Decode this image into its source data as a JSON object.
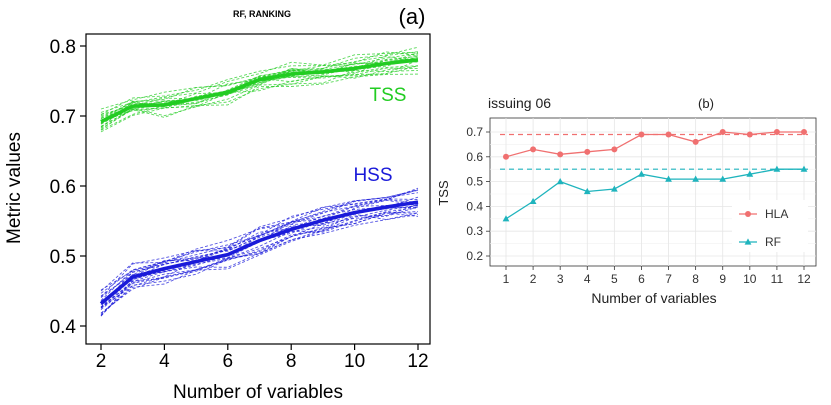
{
  "chart_data": [
    {
      "type": "line",
      "title": "RF, RANKING",
      "panel_label": "(a)",
      "xlabel": "Number of variables",
      "ylabel": "Metric values",
      "xlim": [
        2,
        12
      ],
      "ylim": [
        0.4,
        0.8
      ],
      "x_ticks": [
        "2",
        "4",
        "6",
        "8",
        "10",
        "12"
      ],
      "y_ticks": [
        "0.4",
        "0.5",
        "0.6",
        "0.7",
        "0.8"
      ],
      "grid": false,
      "x": [
        2,
        3,
        4,
        5,
        6,
        7,
        8,
        9,
        10,
        11,
        12
      ],
      "series": [
        {
          "name": "TSS",
          "color": "#22cc22",
          "values": [
            0.692,
            0.714,
            0.716,
            0.725,
            0.734,
            0.752,
            0.76,
            0.763,
            0.768,
            0.775,
            0.78
          ]
        },
        {
          "name": "HSS",
          "color": "#1a1ad9",
          "values": [
            0.432,
            0.47,
            0.482,
            0.492,
            0.502,
            0.522,
            0.538,
            0.551,
            0.562,
            0.57,
            0.577
          ]
        }
      ]
    },
    {
      "type": "line",
      "title": "issuing 06",
      "panel_label": "(b)",
      "xlabel": "Number of variables",
      "ylabel": "TSS",
      "xlim": [
        1,
        12
      ],
      "ylim": [
        0.2,
        0.7
      ],
      "x_ticks": [
        "1",
        "2",
        "3",
        "4",
        "5",
        "6",
        "7",
        "8",
        "9",
        "10",
        "11",
        "12"
      ],
      "y_ticks": [
        "0.2",
        "0.3",
        "0.4",
        "0.5",
        "0.6",
        "0.7"
      ],
      "grid": true,
      "legend": "right",
      "x": [
        1,
        2,
        3,
        4,
        5,
        6,
        7,
        8,
        9,
        10,
        11,
        12
      ],
      "series": [
        {
          "name": "HLA",
          "color": "#f07070",
          "reference": 0.69,
          "values": [
            0.6,
            0.63,
            0.61,
            0.62,
            0.63,
            0.69,
            0.69,
            0.66,
            0.7,
            0.69,
            0.7,
            0.7
          ]
        },
        {
          "name": "RF",
          "color": "#1fb4bd",
          "reference": 0.55,
          "values": [
            0.35,
            0.42,
            0.5,
            0.46,
            0.47,
            0.53,
            0.51,
            0.51,
            0.51,
            0.53,
            0.55,
            0.55
          ]
        }
      ]
    }
  ]
}
